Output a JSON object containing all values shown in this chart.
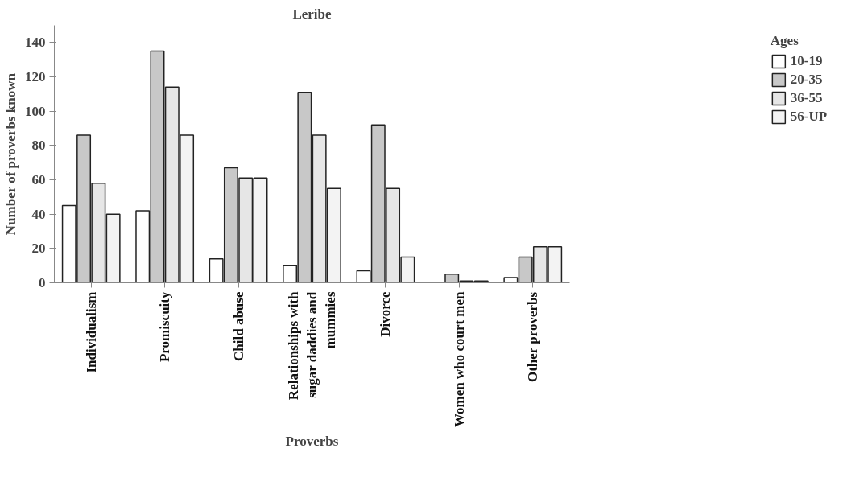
{
  "chart_data": {
    "type": "bar",
    "title": "Leribe",
    "xlabel": "Proverbs",
    "ylabel": "Number of proverbs known",
    "legend_title": "Ages",
    "categories": [
      "Individualism",
      "Promiscuity",
      "Child abuse",
      "Relationships with sugar daddies and mummies",
      "Divorce",
      "Women who court men",
      "Other proverbs"
    ],
    "series": [
      {
        "name": "10-19",
        "color": "#ffffff",
        "values": [
          45,
          42,
          14,
          10,
          7,
          null,
          3
        ]
      },
      {
        "name": "20-35",
        "color": "#c8c8c8",
        "values": [
          86,
          135,
          67,
          111,
          92,
          5,
          15
        ]
      },
      {
        "name": "36-55",
        "color": "#e6e6e6",
        "values": [
          58,
          114,
          61,
          86,
          55,
          1,
          21
        ]
      },
      {
        "name": "56-UP",
        "color": "#f3f3f3",
        "values": [
          40,
          86,
          61,
          55,
          15,
          1,
          21
        ]
      }
    ],
    "ylim": [
      0,
      150
    ],
    "yticks": [
      0,
      20,
      40,
      60,
      80,
      100,
      120,
      140
    ],
    "grid": false,
    "legend": "right"
  }
}
